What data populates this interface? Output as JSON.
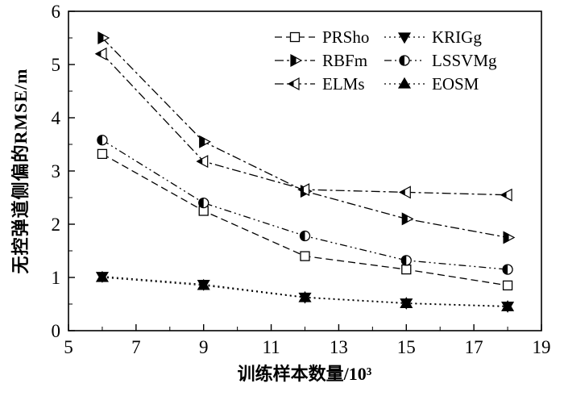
{
  "chart_data": {
    "type": "line",
    "title": "",
    "xlabel": "训练样本数量/10³",
    "ylabel": "无控弹道侧偏的RMSE/m",
    "xlim": [
      5,
      19
    ],
    "ylim": [
      0,
      6
    ],
    "xticks": [
      5,
      7,
      9,
      11,
      13,
      15,
      17,
      19
    ],
    "yticks": [
      0,
      1,
      2,
      3,
      4,
      5,
      6
    ],
    "grid": false,
    "legend_position": "top-right-inside",
    "x": [
      6,
      9,
      12,
      15,
      18
    ],
    "series": [
      {
        "name": "PRSho",
        "marker": "square-open",
        "dash": "9,5",
        "values": [
          3.32,
          2.25,
          1.4,
          1.15,
          0.85
        ]
      },
      {
        "name": "RBFm",
        "marker": "triangle-right-half",
        "dash": "11,4,3,4",
        "values": [
          5.5,
          3.55,
          2.62,
          2.1,
          1.75
        ]
      },
      {
        "name": "ELMs",
        "marker": "triangle-left-half",
        "dash": "11,4,3,4",
        "values": [
          5.2,
          3.18,
          2.65,
          2.6,
          2.55
        ]
      },
      {
        "name": "KRIGg",
        "marker": "triangle-down-filled",
        "dash": "2,4",
        "values": [
          1.02,
          0.87,
          0.63,
          0.52,
          0.46
        ]
      },
      {
        "name": "LSSVMg",
        "marker": "circle-half",
        "dash": "9,4,2,4,2,4",
        "values": [
          3.58,
          2.4,
          1.78,
          1.32,
          1.15
        ]
      },
      {
        "name": "EOSM",
        "marker": "triangle-up-filled",
        "dash": "2,4",
        "values": [
          1.0,
          0.85,
          0.62,
          0.51,
          0.45
        ]
      }
    ],
    "legend_order": [
      "PRSho",
      "KRIGg",
      "RBFm",
      "LSSVMg",
      "ELMs",
      "EOSM"
    ]
  },
  "colors": {
    "line": "#000000",
    "background": "#ffffff",
    "text": "#000000"
  }
}
